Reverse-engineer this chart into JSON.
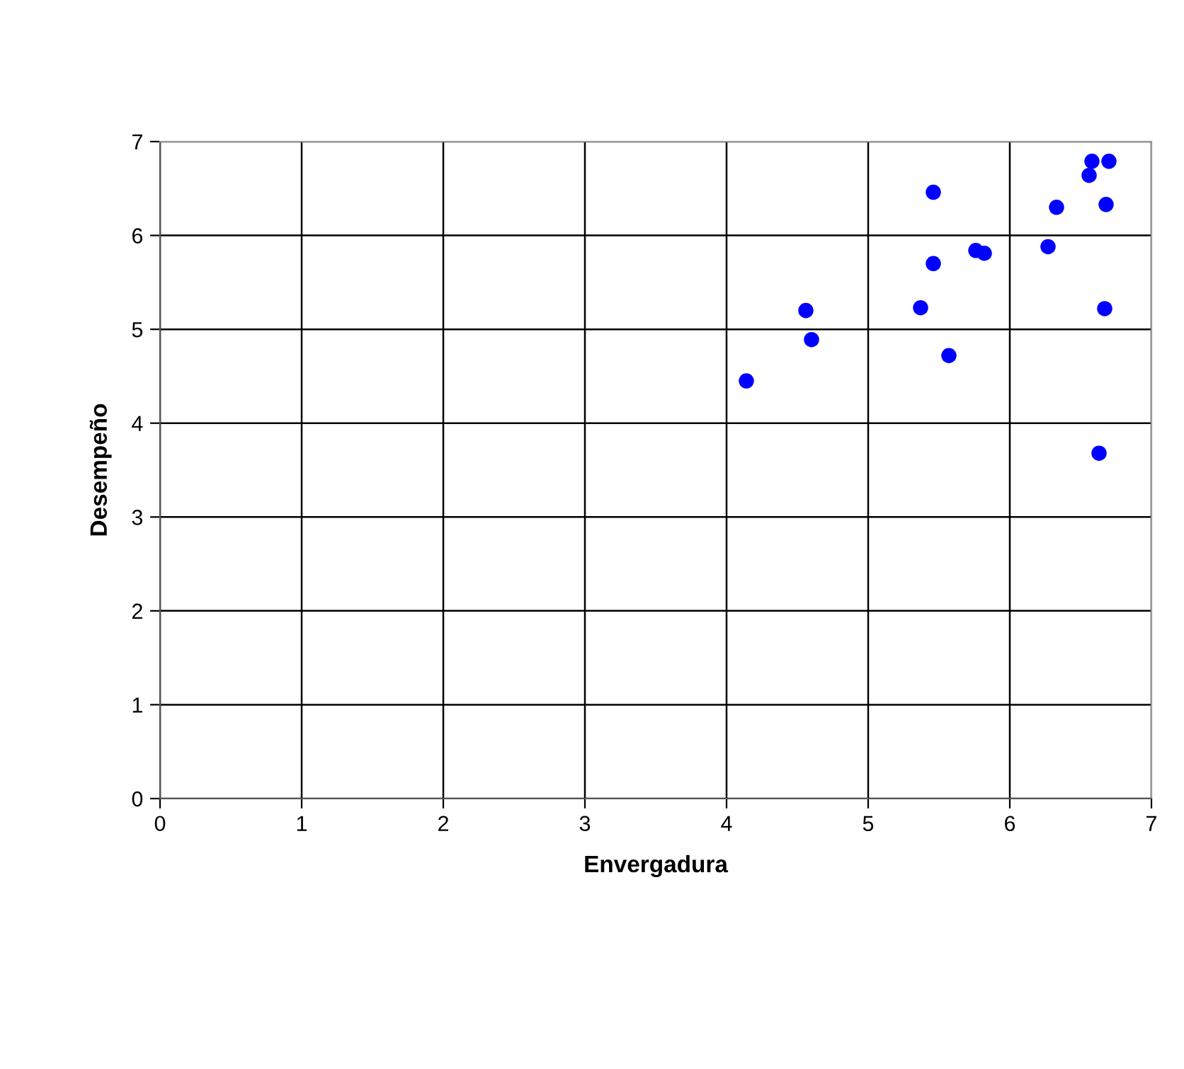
{
  "chart_data": {
    "type": "scatter",
    "xlabel": "Envergadura",
    "ylabel": "Desempeño",
    "x": [
      4.14,
      4.56,
      4.6,
      5.37,
      5.46,
      5.46,
      5.57,
      5.76,
      5.82,
      6.27,
      6.33,
      6.56,
      6.58,
      6.7,
      6.68,
      6.67,
      6.63
    ],
    "series": [
      {
        "color": "#0000ff",
        "values": [
          4.45,
          5.2,
          4.89,
          5.23,
          6.46,
          5.7,
          4.72,
          5.84,
          5.81,
          5.88,
          6.3,
          6.64,
          6.79,
          6.79,
          6.33,
          5.22,
          3.68
        ]
      }
    ],
    "xlim": [
      0,
      7
    ],
    "ylim": [
      0,
      7
    ],
    "xticks": [
      0,
      1,
      2,
      3,
      4,
      5,
      6,
      7
    ],
    "yticks": [
      0,
      1,
      2,
      3,
      4,
      5,
      6,
      7
    ],
    "grid": true,
    "marker": "circle"
  }
}
